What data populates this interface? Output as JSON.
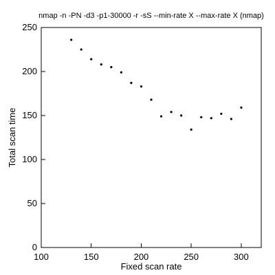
{
  "chart_data": {
    "type": "scatter",
    "title": "nmap -n -PN -d3 -p1-30000 -r -sS --min-rate X --max-rate X (nmap)",
    "xlabel": "Fixed scan rate",
    "ylabel": "Total scan time",
    "xlim": [
      100,
      320
    ],
    "ylim": [
      0,
      250
    ],
    "x_ticks": [
      100,
      150,
      200,
      250,
      300
    ],
    "y_ticks": [
      0,
      50,
      100,
      150,
      200,
      250
    ],
    "grid": false,
    "marker_color": "#000000",
    "points": [
      {
        "x": 130,
        "y": 236
      },
      {
        "x": 140,
        "y": 225
      },
      {
        "x": 150,
        "y": 214
      },
      {
        "x": 160,
        "y": 208
      },
      {
        "x": 170,
        "y": 205
      },
      {
        "x": 180,
        "y": 199
      },
      {
        "x": 190,
        "y": 187
      },
      {
        "x": 200,
        "y": 183
      },
      {
        "x": 210,
        "y": 168
      },
      {
        "x": 220,
        "y": 149
      },
      {
        "x": 230,
        "y": 154
      },
      {
        "x": 240,
        "y": 150
      },
      {
        "x": 250,
        "y": 134
      },
      {
        "x": 260,
        "y": 148
      },
      {
        "x": 270,
        "y": 147
      },
      {
        "x": 280,
        "y": 152
      },
      {
        "x": 290,
        "y": 146
      },
      {
        "x": 300,
        "y": 159
      }
    ]
  }
}
